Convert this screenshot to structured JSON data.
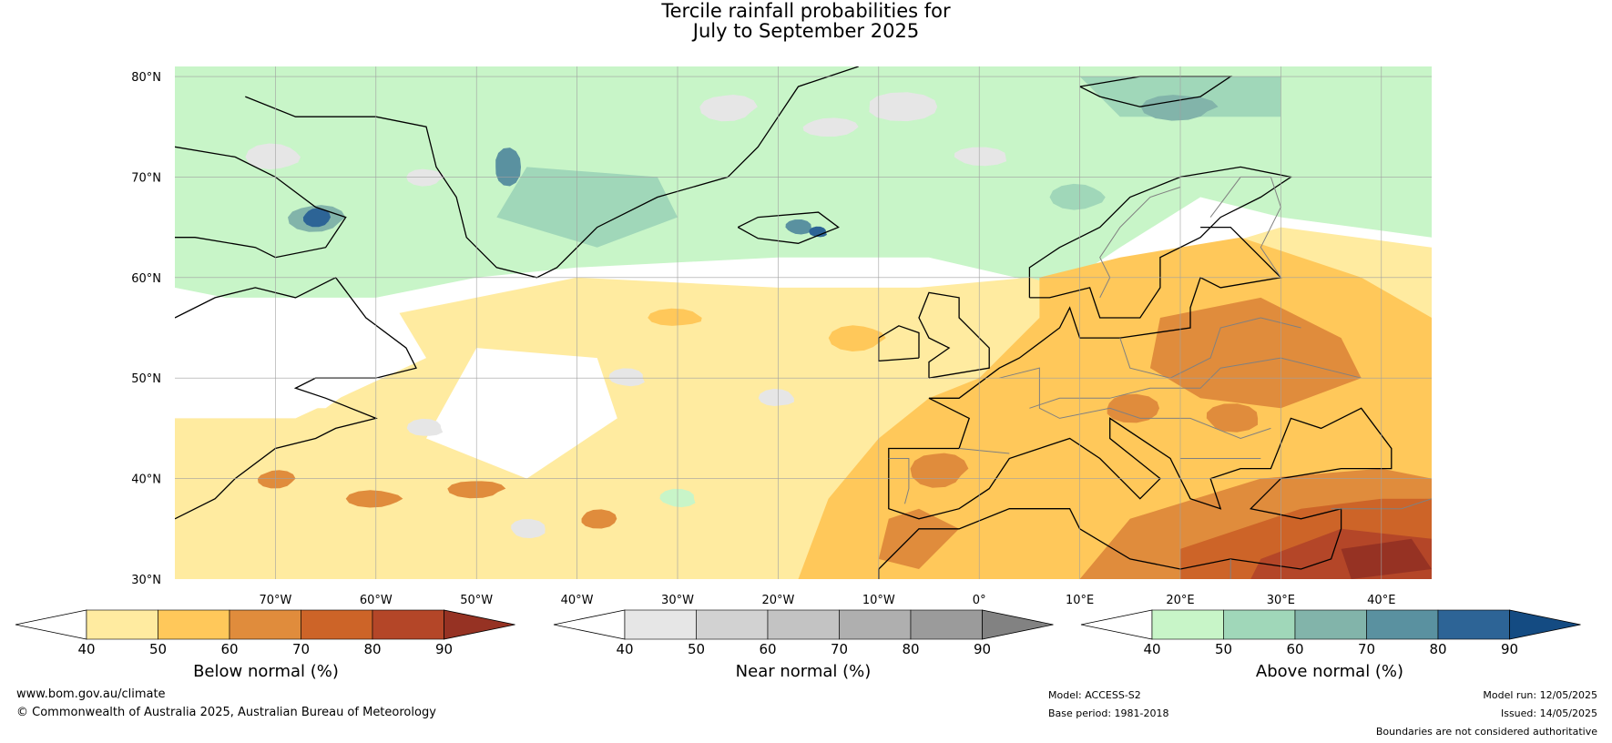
{
  "title": {
    "line1": "Tercile rainfall probabilities for",
    "line2": "July to September 2025"
  },
  "map": {
    "region": "North Atlantic and Europe",
    "lat_labels": [
      "80°N",
      "70°N",
      "60°N",
      "50°N",
      "40°N",
      "30°N"
    ],
    "lon_labels": [
      "70°W",
      "60°W",
      "50°W",
      "40°W",
      "30°W",
      "20°W",
      "10°W",
      "0°",
      "10°E",
      "20°E",
      "30°E",
      "40°E"
    ],
    "colors": {
      "below": [
        "#ffeba0",
        "#ffc85a",
        "#e08c3c",
        "#cd6428",
        "#b44628",
        "#963223"
      ],
      "near": [
        "#e6e6e6",
        "#d2d2d2",
        "#c3c3c3",
        "#afafaf",
        "#9b9b9b",
        "#828282"
      ],
      "above": [
        "#c8f5c8",
        "#a0d7b9",
        "#82b4aa",
        "#5a91a0",
        "#2d6496",
        "#144b82"
      ],
      "coastline": "#000000",
      "borders": "#808080",
      "gridlines": "#a0a0a0"
    }
  },
  "colorbars": [
    {
      "id": "below",
      "label": "Below normal (%)",
      "ticks": [
        "40",
        "50",
        "60",
        "70",
        "80",
        "90"
      ]
    },
    {
      "id": "near",
      "label": "Near normal (%)",
      "ticks": [
        "40",
        "50",
        "60",
        "70",
        "80",
        "90"
      ]
    },
    {
      "id": "above",
      "label": "Above normal (%)",
      "ticks": [
        "40",
        "50",
        "60",
        "70",
        "80",
        "90"
      ]
    }
  ],
  "footer": {
    "website": "www.bom.gov.au/climate",
    "copyright": "© Commonwealth of Australia 2025, Australian Bureau of Meteorology",
    "model": "Model: ACCESS-S2",
    "base_period": "Base period: 1981-2018",
    "model_run": "Model run: 12/05/2025",
    "issued": "Issued: 14/05/2025",
    "disclaimer": "Boundaries are not considered authoritative"
  }
}
